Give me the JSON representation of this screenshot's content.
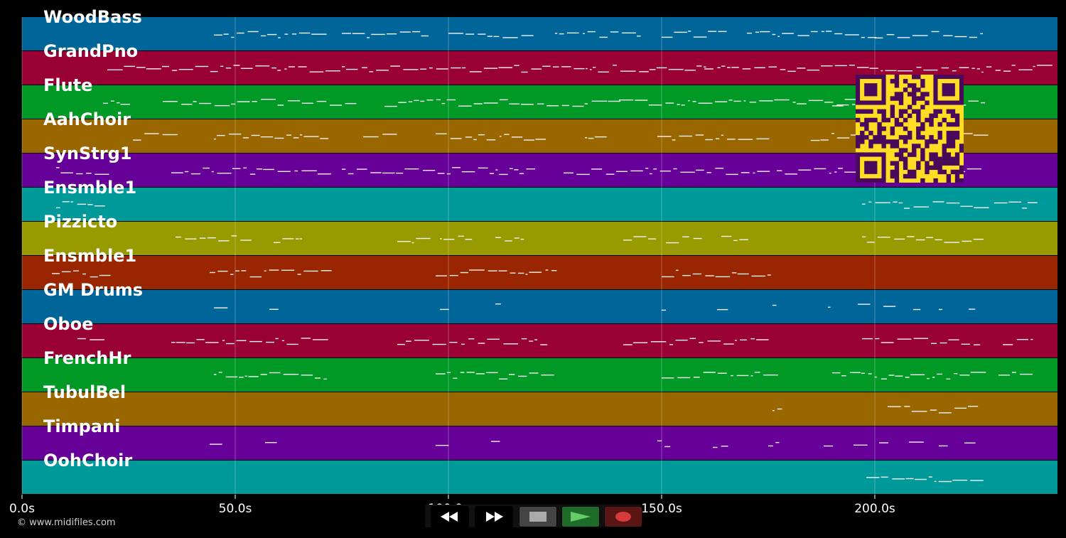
{
  "tracks": [
    {
      "name": "WoodBass",
      "color": "#006699"
    },
    {
      "name": "GrandPno",
      "color": "#990033"
    },
    {
      "name": "Flute",
      "color": "#009926"
    },
    {
      "name": "AahChoir",
      "color": "#996600"
    },
    {
      "name": "SynStrg1",
      "color": "#660099"
    },
    {
      "name": "Ensmble1",
      "color": "#009999"
    },
    {
      "name": "Pizzicto",
      "color": "#999900"
    },
    {
      "name": "Ensmble1",
      "color": "#992600"
    },
    {
      "name": "GM Drums",
      "color": "#006699"
    },
    {
      "name": "Oboe",
      "color": "#990033"
    },
    {
      "name": "FrenchHr",
      "color": "#009926"
    },
    {
      "name": "TubulBel",
      "color": "#996600"
    },
    {
      "name": "Timpani",
      "color": "#660099"
    },
    {
      "name": "OohChoir",
      "color": "#009999"
    }
  ],
  "timeline": {
    "max_seconds": 243,
    "ticks": [
      {
        "seconds": 0,
        "label": "0.0s"
      },
      {
        "seconds": 50,
        "label": "50.0s"
      },
      {
        "seconds": 100,
        "label": "100.0s"
      },
      {
        "seconds": 150,
        "label": "150.0s"
      },
      {
        "seconds": 200,
        "label": "200.0s"
      }
    ]
  },
  "copyright": "© www.midifiles.com",
  "transport": {
    "buttons": [
      {
        "name": "rewind-button",
        "icon": "rewind-icon",
        "color": "#000000"
      },
      {
        "name": "fast-forward-button",
        "icon": "fast-forward-icon",
        "color": "#000000"
      },
      {
        "name": "stop-button",
        "icon": "stop-icon",
        "color": "#444444"
      },
      {
        "name": "play-button",
        "icon": "play-icon",
        "color": "#1f6b2a"
      },
      {
        "name": "record-button",
        "icon": "record-icon",
        "color": "#5a1515"
      }
    ]
  },
  "qr": {
    "foreground": "#4a0a5c",
    "background": "#ffdd22"
  }
}
